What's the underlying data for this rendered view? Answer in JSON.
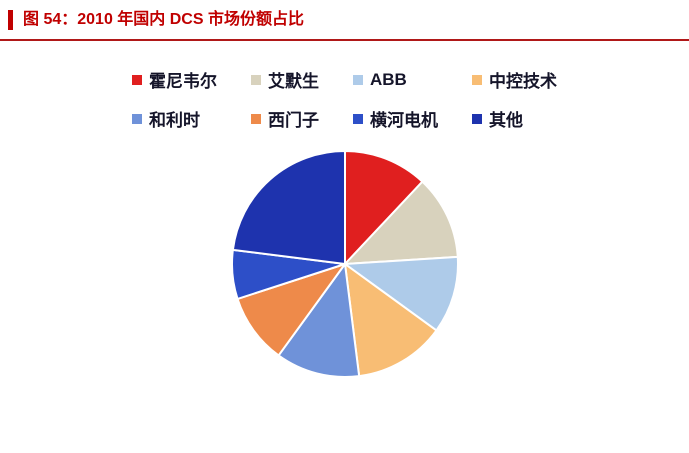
{
  "figure": {
    "title": "图 54：2010 年国内 DCS 市场份额占比"
  },
  "chart_data": {
    "type": "pie",
    "title": "2010 年国内 DCS 市场份额占比",
    "categories": [
      "霍尼韦尔",
      "艾默生",
      "ABB",
      "中控技术",
      "和利时",
      "西门子",
      "横河电机",
      "其他"
    ],
    "values": [
      12,
      12,
      11,
      13,
      12,
      10,
      7,
      23
    ],
    "unit": "%",
    "colors": [
      "#e01f1f",
      "#d8d2bd",
      "#aecbe9",
      "#f8bd74",
      "#6f92d9",
      "#ee8a4a",
      "#2d4fc8",
      "#1e33ae"
    ],
    "start_angle": -90,
    "direction": "clockwise",
    "legend_position": "top",
    "legend_rows": 2,
    "slice_border_color": "#ffffff"
  },
  "style": {
    "title_color": "#c00000",
    "rule_color": "#b01818",
    "legend_text_color": "#15152a"
  }
}
